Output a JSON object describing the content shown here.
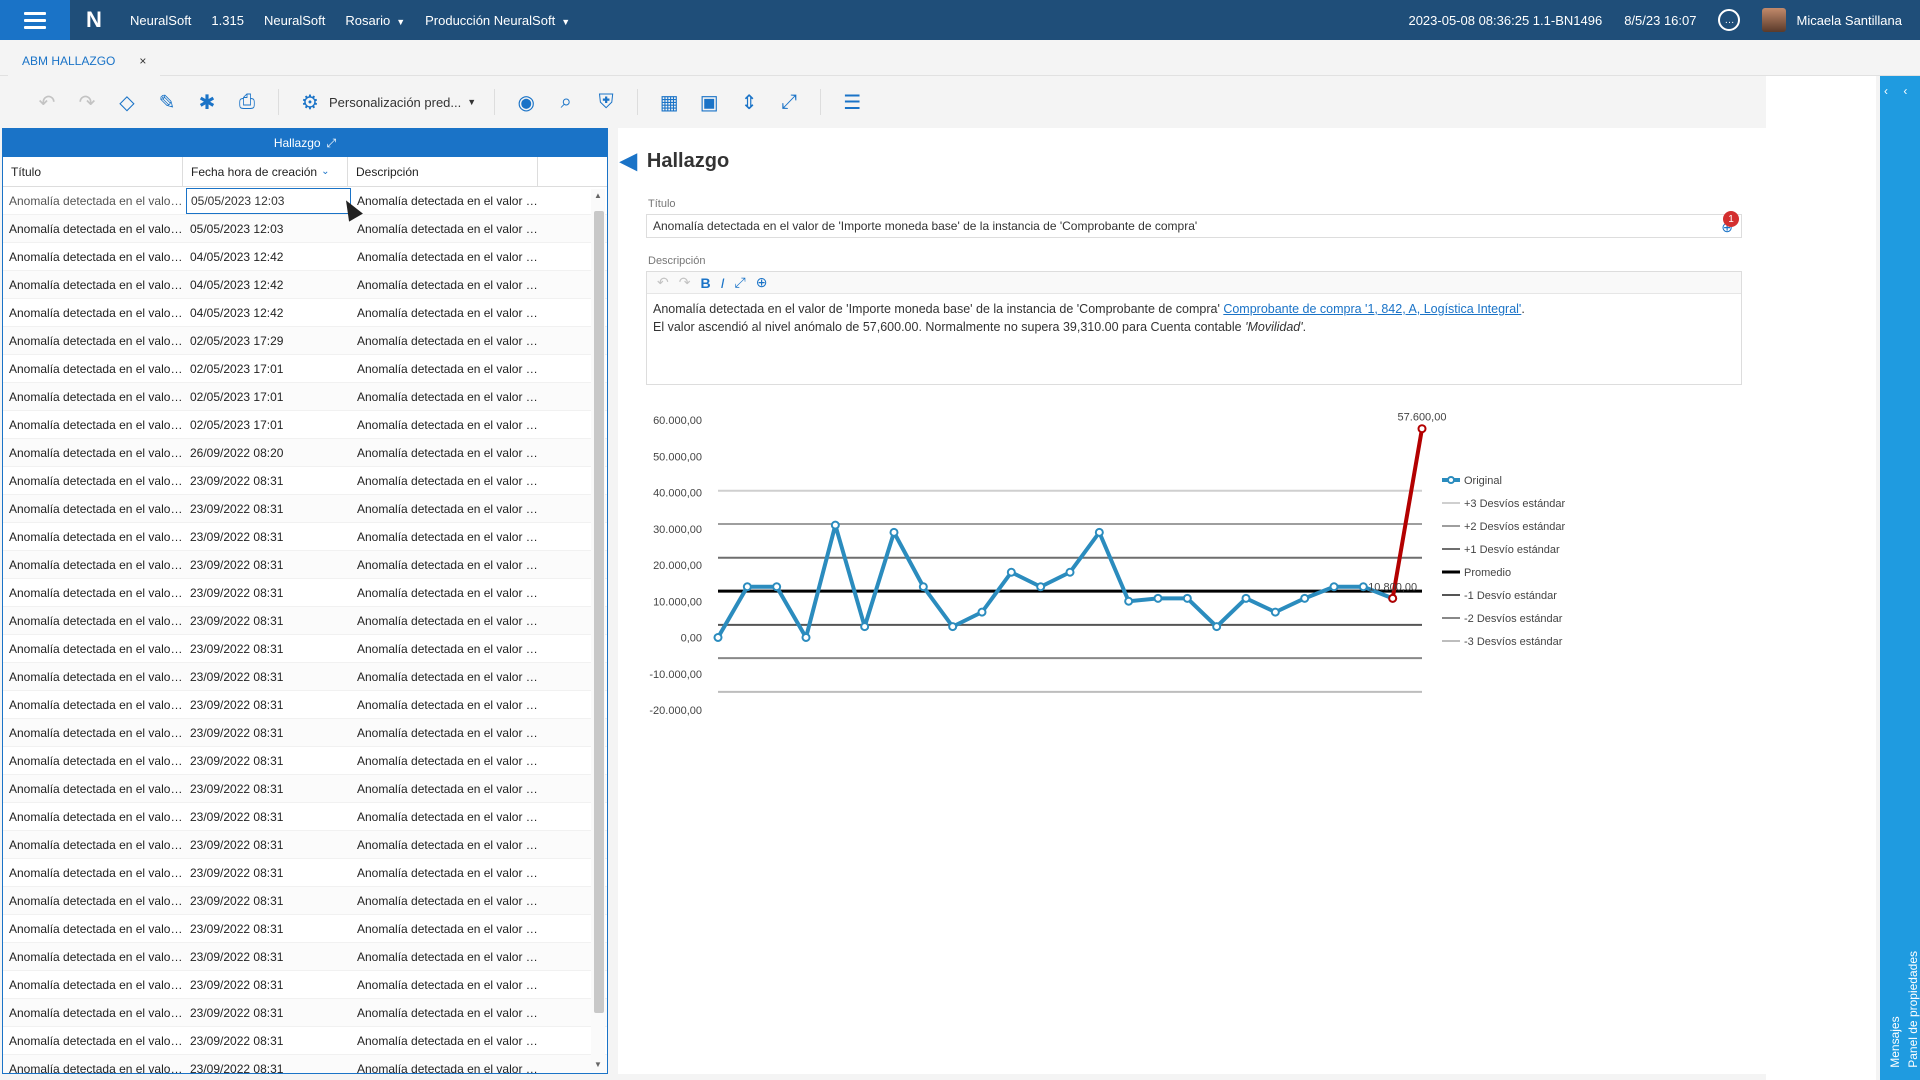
{
  "topbar": {
    "company": "NeuralSoft",
    "version": "1.315",
    "product": "NeuralSoft",
    "location": "Rosario",
    "environment": "Producción NeuralSoft",
    "build": "2023-05-08 08:36:25 1.1-BN1496",
    "datetime": "8/5/23 16:07",
    "user": "Micaela Santillana"
  },
  "tab": {
    "label": "ABM HALLAZGO",
    "close": "×"
  },
  "toolbar": {
    "personalization": "Personalización pred...",
    "icons": [
      "undo-icon",
      "redo-icon",
      "eraser-icon",
      "edit-icon",
      "bug-icon",
      "print-icon",
      "settings-icon",
      "view-icon",
      "search-document-icon",
      "shield-icon",
      "grid-delete-icon",
      "image-icon",
      "split-icon",
      "expand-icon",
      "list-delete-icon",
      "check-icon"
    ]
  },
  "grid": {
    "title": "Hallazgo",
    "columns": [
      "Título",
      "Fecha hora de creación",
      "Descripción"
    ],
    "rows": [
      {
        "titulo": "Anomalía detectada en el valor ...",
        "fecha": "05/05/2023 12:03",
        "desc": "Anomalía detectada en el valor de '"
      },
      {
        "titulo": "Anomalía detectada en el valor ...",
        "fecha": "05/05/2023 12:03",
        "desc": "Anomalía detectada en el valor de '"
      },
      {
        "titulo": "Anomalía detectada en el valor ...",
        "fecha": "04/05/2023 12:42",
        "desc": "Anomalía detectada en el valor de '"
      },
      {
        "titulo": "Anomalía detectada en el valor ...",
        "fecha": "04/05/2023 12:42",
        "desc": "Anomalía detectada en el valor de '"
      },
      {
        "titulo": "Anomalía detectada en el valor ...",
        "fecha": "04/05/2023 12:42",
        "desc": "Anomalía detectada en el valor de '"
      },
      {
        "titulo": "Anomalía detectada en el valor ...",
        "fecha": "02/05/2023 17:29",
        "desc": "Anomalía detectada en el valor de '"
      },
      {
        "titulo": "Anomalía detectada en el valor ...",
        "fecha": "02/05/2023 17:01",
        "desc": "Anomalía detectada en el valor de '"
      },
      {
        "titulo": "Anomalía detectada en el valor ...",
        "fecha": "02/05/2023 17:01",
        "desc": "Anomalía detectada en el valor de '"
      },
      {
        "titulo": "Anomalía detectada en el valor ...",
        "fecha": "02/05/2023 17:01",
        "desc": "Anomalía detectada en el valor de '"
      },
      {
        "titulo": "Anomalía detectada en el valor ...",
        "fecha": "26/09/2022 08:20",
        "desc": "Anomalía detectada en el valor de '"
      },
      {
        "titulo": "Anomalía detectada en el valor ...",
        "fecha": "23/09/2022 08:31",
        "desc": "Anomalía detectada en el valor de '"
      },
      {
        "titulo": "Anomalía detectada en el valor ...",
        "fecha": "23/09/2022 08:31",
        "desc": "Anomalía detectada en el valor de '"
      },
      {
        "titulo": "Anomalía detectada en el valor ...",
        "fecha": "23/09/2022 08:31",
        "desc": "Anomalía detectada en el valor de '"
      },
      {
        "titulo": "Anomalía detectada en el valor ...",
        "fecha": "23/09/2022 08:31",
        "desc": "Anomalía detectada en el valor de '"
      },
      {
        "titulo": "Anomalía detectada en el valor ...",
        "fecha": "23/09/2022 08:31",
        "desc": "Anomalía detectada en el valor de '"
      },
      {
        "titulo": "Anomalía detectada en el valor ...",
        "fecha": "23/09/2022 08:31",
        "desc": "Anomalía detectada en el valor de '"
      },
      {
        "titulo": "Anomalía detectada en el valor ...",
        "fecha": "23/09/2022 08:31",
        "desc": "Anomalía detectada en el valor de '"
      },
      {
        "titulo": "Anomalía detectada en el valor ...",
        "fecha": "23/09/2022 08:31",
        "desc": "Anomalía detectada en el valor de '"
      },
      {
        "titulo": "Anomalía detectada en el valor ...",
        "fecha": "23/09/2022 08:31",
        "desc": "Anomalía detectada en el valor de '"
      },
      {
        "titulo": "Anomalía detectada en el valor ...",
        "fecha": "23/09/2022 08:31",
        "desc": "Anomalía detectada en el valor de '"
      },
      {
        "titulo": "Anomalía detectada en el valor ...",
        "fecha": "23/09/2022 08:31",
        "desc": "Anomalía detectada en el valor de '"
      },
      {
        "titulo": "Anomalía detectada en el valor ...",
        "fecha": "23/09/2022 08:31",
        "desc": "Anomalía detectada en el valor de '"
      },
      {
        "titulo": "Anomalía detectada en el valor ...",
        "fecha": "23/09/2022 08:31",
        "desc": "Anomalía detectada en el valor de '"
      },
      {
        "titulo": "Anomalía detectada en el valor ...",
        "fecha": "23/09/2022 08:31",
        "desc": "Anomalía detectada en el valor de '"
      },
      {
        "titulo": "Anomalía detectada en el valor ...",
        "fecha": "23/09/2022 08:31",
        "desc": "Anomalía detectada en el valor de '"
      },
      {
        "titulo": "Anomalía detectada en el valor ...",
        "fecha": "23/09/2022 08:31",
        "desc": "Anomalía detectada en el valor de '"
      },
      {
        "titulo": "Anomalía detectada en el valor ...",
        "fecha": "23/09/2022 08:31",
        "desc": "Anomalía detectada en el valor de '"
      },
      {
        "titulo": "Anomalía detectada en el valor ...",
        "fecha": "23/09/2022 08:31",
        "desc": "Anomalía detectada en el valor de '"
      },
      {
        "titulo": "Anomalía detectada en el valor ...",
        "fecha": "23/09/2022 08:31",
        "desc": "Anomalía detectada en el valor de '"
      },
      {
        "titulo": "Anomalía detectada en el valor ...",
        "fecha": "23/09/2022 08:31",
        "desc": "Anomalía detectada en el valor de '"
      },
      {
        "titulo": "Anomalía detectada en el valor ...",
        "fecha": "23/09/2022 08:31",
        "desc": "Anomalía detectada en el valor de '"
      },
      {
        "titulo": "Anomalía detectada en el valor ...",
        "fecha": "23/09/2022 08:31",
        "desc": "Anomalía detectada en el valor de '"
      }
    ]
  },
  "detail": {
    "title": "Hallazgo",
    "titulo_label": "Título",
    "titulo_value": "Anomalía detectada en el valor de 'Importe moneda base' de la instancia de 'Comprobante de compra'",
    "badge": "1",
    "descripcion_label": "Descripción",
    "desc_line1_pre": "Anomalía detectada en el valor de 'Importe moneda base' de la instancia de 'Comprobante de compra' ",
    "desc_link": "Comprobante de compra '1, 842, A, Logística Integral'",
    "desc_line1_post": ".",
    "desc_line2_pre": "El valor ascendió al nivel anómalo de 57,600.00. Normalmente no supera 39,310.00 para Cuenta contable ",
    "desc_line2_em": "'Movilidad'",
    "desc_line2_post": "."
  },
  "chart_data": {
    "type": "line",
    "yticks": [
      "60.000,00",
      "50.000,00",
      "40.000,00",
      "30.000,00",
      "20.000,00",
      "10.000,00",
      "0,00",
      "-10.000,00",
      "-20.000,00"
    ],
    "ylim": [
      -20000,
      60000
    ],
    "series": [
      {
        "name": "Original",
        "color": "#2b8cbe",
        "values": [
          0,
          14000,
          14000,
          0,
          31000,
          3000,
          29000,
          14000,
          3000,
          7000,
          18000,
          14000,
          18000,
          29000,
          10000,
          10800,
          10800,
          3000,
          10800,
          7000,
          10800,
          14000,
          14000,
          10800
        ]
      },
      {
        "name": "Anomaly",
        "color": "#b30000",
        "values": [
          10800,
          57600
        ]
      }
    ],
    "reference_lines": [
      {
        "name": "+3 Desvíos estándar",
        "value": 40500,
        "color": "#cfcfcf"
      },
      {
        "name": "+2 Desvíos estándar",
        "value": 31300,
        "color": "#9e9e9e"
      },
      {
        "name": "+1 Desvío estándar",
        "value": 22000,
        "color": "#6e6e6e"
      },
      {
        "name": "Promedio",
        "value": 12800,
        "color": "#000000"
      },
      {
        "name": "-1 Desvío estándar",
        "value": 3500,
        "color": "#555555"
      },
      {
        "name": "-2 Desvíos estándar",
        "value": -5700,
        "color": "#888888"
      },
      {
        "name": "-3 Desvíos estándar",
        "value": -15000,
        "color": "#bdbdbd"
      }
    ],
    "annotations": [
      {
        "text": "57.600,00",
        "x_index": 24,
        "value": 57600
      },
      {
        "text": "10.800,00",
        "x_index": 23,
        "value": 10800
      }
    ],
    "legend": [
      "Original",
      "+3 Desvíos estándar",
      "+2 Desvíos estándar",
      "+1 Desvío estándar",
      "Promedio",
      "-1 Desvío estándar",
      "-2 Desvíos estándar",
      "-3 Desvíos estándar"
    ],
    "legend_position": "right"
  },
  "sidepanel": {
    "label1": "Mensajes",
    "label2": "Panel de propiedades"
  }
}
